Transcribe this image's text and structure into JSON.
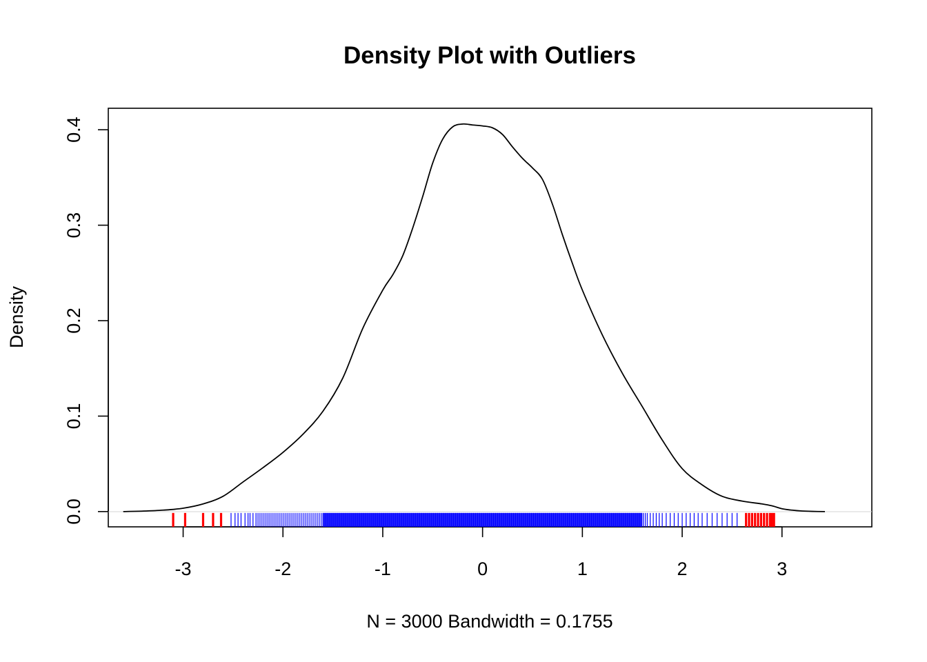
{
  "chart_data": {
    "type": "line",
    "title": "Density Plot with Outliers",
    "xlabel": "N = 3000   Bandwidth = 0.1755",
    "ylabel": "Density",
    "xlim": [
      -3.75,
      3.9
    ],
    "ylim": [
      -0.016,
      0.4225
    ],
    "x_ticks": [
      -3,
      -2,
      -1,
      0,
      1,
      2,
      3
    ],
    "x_tick_labels": [
      "-3",
      "-2",
      "-1",
      "0",
      "1",
      "2",
      "3"
    ],
    "y_ticks": [
      0.0,
      0.1,
      0.2,
      0.3,
      0.4
    ],
    "y_tick_labels": [
      "0.0",
      "0.1",
      "0.2",
      "0.3",
      "0.4"
    ],
    "grid": false,
    "legend": "none",
    "colors": {
      "curve": "#000000",
      "rug": "#0000ff",
      "outliers": "#ff0000",
      "zero_line": "#d3d3d3"
    },
    "series": [
      {
        "x": [
          -3.6,
          -3.4,
          -3.2,
          -3.0,
          -2.8,
          -2.6,
          -2.4,
          -2.2,
          -2.0,
          -1.8,
          -1.6,
          -1.4,
          -1.2,
          -1.0,
          -0.9,
          -0.8,
          -0.7,
          -0.6,
          -0.5,
          -0.4,
          -0.3,
          -0.2,
          -0.1,
          0.0,
          0.1,
          0.2,
          0.3,
          0.4,
          0.5,
          0.6,
          0.7,
          0.8,
          0.9,
          1.0,
          1.2,
          1.4,
          1.6,
          1.8,
          2.0,
          2.2,
          2.4,
          2.6,
          2.8,
          2.9,
          3.0,
          3.1,
          3.2,
          3.3,
          3.43
        ],
        "y": [
          0.0,
          0.0005,
          0.0015,
          0.0035,
          0.008,
          0.016,
          0.031,
          0.046,
          0.062,
          0.081,
          0.105,
          0.14,
          0.192,
          0.232,
          0.248,
          0.268,
          0.297,
          0.33,
          0.365,
          0.39,
          0.403,
          0.406,
          0.405,
          0.404,
          0.402,
          0.395,
          0.382,
          0.37,
          0.36,
          0.348,
          0.322,
          0.29,
          0.26,
          0.232,
          0.185,
          0.145,
          0.11,
          0.075,
          0.045,
          0.028,
          0.016,
          0.011,
          0.008,
          0.006,
          0.003,
          0.0015,
          0.0006,
          0.0002,
          0.0
        ]
      }
    ],
    "rug": {
      "x": [
        -2.52,
        -2.48,
        -2.45,
        -2.42,
        -2.38,
        -2.35,
        -2.33,
        -2.3,
        -2.27,
        -2.25,
        -2.23,
        -2.21,
        -2.19,
        -2.17,
        -2.15,
        -2.13,
        -2.11,
        -2.09,
        -2.07,
        -2.05,
        -2.03,
        -2.01,
        -1.99,
        -1.97,
        -1.95,
        -1.93,
        -1.91,
        -1.89,
        -1.87,
        -1.85,
        -1.83,
        -1.81,
        -1.79,
        -1.77,
        -1.75,
        -1.73,
        -1.71,
        -1.69,
        -1.67,
        -1.65,
        -1.63,
        -1.61,
        -1.59,
        -1.57,
        -1.55,
        -1.53,
        -1.51,
        -1.49,
        -1.47,
        -1.45,
        -1.43,
        -1.41,
        -1.39,
        -1.37,
        -1.35,
        -1.33,
        -1.31,
        -1.29,
        -1.27,
        -1.25,
        -1.23,
        -1.21,
        -1.19,
        -1.17,
        -1.15,
        -1.13,
        -1.11,
        -1.09,
        -1.07,
        -1.05,
        -1.03,
        -1.01,
        -0.99,
        -0.97,
        -0.95,
        -0.93,
        -0.91,
        -0.89,
        -0.87,
        -0.85,
        -0.83,
        -0.81,
        -0.79,
        -0.77,
        -0.75,
        -0.73,
        -0.71,
        -0.69,
        -0.67,
        -0.65,
        -0.63,
        -0.61,
        -0.59,
        -0.57,
        -0.55,
        -0.53,
        -0.51,
        -0.49,
        -0.47,
        -0.45,
        -0.43,
        -0.41,
        -0.39,
        -0.37,
        -0.35,
        -0.33,
        -0.31,
        -0.29,
        -0.27,
        -0.25,
        -0.23,
        -0.21,
        -0.19,
        -0.17,
        -0.15,
        -0.13,
        -0.11,
        -0.09,
        -0.07,
        -0.05,
        -0.03,
        -0.01,
        0.01,
        0.03,
        0.05,
        0.07,
        0.09,
        0.11,
        0.13,
        0.15,
        0.17,
        0.19,
        0.21,
        0.23,
        0.25,
        0.27,
        0.29,
        0.31,
        0.33,
        0.35,
        0.37,
        0.39,
        0.41,
        0.43,
        0.45,
        0.47,
        0.49,
        0.51,
        0.53,
        0.55,
        0.57,
        0.59,
        0.61,
        0.63,
        0.65,
        0.67,
        0.69,
        0.71,
        0.73,
        0.75,
        0.77,
        0.79,
        0.81,
        0.83,
        0.85,
        0.87,
        0.89,
        0.91,
        0.93,
        0.95,
        0.97,
        0.99,
        1.01,
        1.03,
        1.05,
        1.07,
        1.09,
        1.11,
        1.13,
        1.15,
        1.17,
        1.19,
        1.21,
        1.23,
        1.25,
        1.27,
        1.29,
        1.31,
        1.33,
        1.35,
        1.37,
        1.39,
        1.41,
        1.43,
        1.45,
        1.47,
        1.49,
        1.51,
        1.53,
        1.55,
        1.57,
        1.59,
        1.61,
        1.63,
        1.65,
        1.68,
        1.71,
        1.74,
        1.77,
        1.8,
        1.84,
        1.88,
        1.92,
        1.96,
        2.0,
        2.04,
        2.08,
        2.12,
        2.16,
        2.2,
        2.25,
        2.3,
        2.35,
        2.4,
        2.45,
        2.5,
        2.55
      ],
      "outliers_x": [
        -3.1,
        -2.98,
        -2.8,
        -2.7,
        -2.62,
        2.64,
        2.67,
        2.7,
        2.73,
        2.76,
        2.79,
        2.82,
        2.85,
        2.88,
        2.9,
        2.92
      ]
    }
  }
}
